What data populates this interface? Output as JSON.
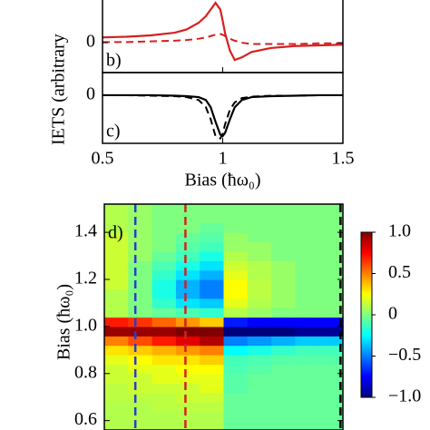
{
  "chart_data": [
    {
      "type": "line",
      "panel_label": "b)",
      "ylabel": "IETS (arbitrary",
      "xlim": [
        0.5,
        1.5
      ],
      "ylim": [
        -0.45,
        0.78
      ],
      "yticks": [
        0
      ],
      "x": [
        0.5,
        0.6,
        0.7,
        0.8,
        0.85,
        0.9,
        0.93,
        0.95,
        0.97,
        0.99,
        1.0,
        1.01,
        1.03,
        1.05,
        1.08,
        1.12,
        1.2,
        1.3,
        1.4,
        1.5
      ],
      "series": [
        {
          "color": "#d62020",
          "style": "solid",
          "values": [
            0.08,
            0.09,
            0.11,
            0.15,
            0.2,
            0.3,
            0.4,
            0.5,
            0.6,
            0.5,
            0.33,
            0.14,
            -0.12,
            -0.26,
            -0.22,
            -0.14,
            -0.08,
            -0.05,
            -0.04,
            -0.03
          ]
        },
        {
          "color": "#d62020",
          "style": "dashed",
          "values": [
            0.01,
            0.01,
            0.02,
            0.03,
            0.04,
            0.06,
            0.08,
            0.1,
            0.12,
            0.13,
            0.12,
            0.1,
            0.06,
            0.03,
            0,
            -0.02,
            -0.02,
            -0.02,
            -0.01,
            -0.01
          ]
        }
      ]
    },
    {
      "type": "line",
      "panel_label": "c)",
      "xlabel": "Bias (ħω₀)",
      "xlim": [
        0.5,
        1.5
      ],
      "xticks": [
        0.5,
        1,
        1.5
      ],
      "ylim": [
        -1,
        0.47
      ],
      "yticks": [
        0
      ],
      "x": [
        0.5,
        0.6,
        0.7,
        0.8,
        0.85,
        0.9,
        0.93,
        0.95,
        0.97,
        0.99,
        1.0,
        1.01,
        1.03,
        1.05,
        1.08,
        1.12,
        1.2,
        1.3,
        1.4,
        1.5
      ],
      "series": [
        {
          "color": "#000000",
          "style": "solid",
          "values": [
            0,
            0,
            0,
            -0.01,
            -0.02,
            -0.04,
            -0.1,
            -0.25,
            -0.55,
            -0.82,
            -0.85,
            -0.78,
            -0.5,
            -0.25,
            -0.1,
            -0.04,
            -0.02,
            -0.01,
            0,
            0
          ]
        },
        {
          "color": "#000000",
          "style": "dashed",
          "values": [
            0,
            0,
            -0.01,
            -0.02,
            -0.04,
            -0.1,
            -0.25,
            -0.5,
            -0.85,
            -0.9,
            -0.8,
            -0.6,
            -0.3,
            -0.15,
            -0.06,
            -0.03,
            -0.01,
            -0.01,
            0,
            0
          ]
        }
      ]
    },
    {
      "type": "heatmap",
      "panel_label": "d)",
      "ylabel": "Bias (ħω₀)",
      "xlim": [
        0.5,
        1.5
      ],
      "ylim": [
        0.56,
        1.52
      ],
      "yticks": [
        0.6,
        0.8,
        {
          "value": 1,
          "label": "1.0"
        },
        1.2,
        1.4
      ],
      "x_edges": [
        0.5,
        0.6,
        0.7,
        0.8,
        0.9,
        1.0,
        1.1,
        1.2,
        1.3,
        1.4,
        1.5
      ],
      "y_edges": [
        0.56,
        0.6,
        0.64,
        0.68,
        0.72,
        0.76,
        0.8,
        0.84,
        0.88,
        0.92,
        0.96,
        1.0,
        1.04,
        1.08,
        1.12,
        1.16,
        1.2,
        1.24,
        1.28,
        1.32,
        1.36,
        1.4,
        1.44,
        1.48,
        1.52
      ],
      "z": [
        [
          0.1,
          0.1,
          0.1,
          0.1,
          0.1,
          -0.05,
          -0.05,
          -0.05,
          -0.05,
          -0.05
        ],
        [
          0.1,
          0.1,
          0.1,
          0.1,
          0.1,
          -0.05,
          -0.05,
          -0.05,
          -0.05,
          -0.05
        ],
        [
          0.1,
          0.1,
          0.12,
          0.12,
          0.12,
          -0.05,
          -0.05,
          -0.05,
          -0.05,
          -0.05
        ],
        [
          0.12,
          0.12,
          0.12,
          0.15,
          0.15,
          -0.05,
          -0.05,
          -0.05,
          -0.05,
          -0.05
        ],
        [
          0.12,
          0.15,
          0.15,
          0.15,
          0.2,
          -0.08,
          -0.05,
          -0.05,
          -0.05,
          -0.05
        ],
        [
          0.15,
          0.15,
          0.2,
          0.2,
          0.2,
          -0.08,
          -0.05,
          -0.05,
          -0.05,
          -0.05
        ],
        [
          0.15,
          0.2,
          0.2,
          0.25,
          0.25,
          -0.1,
          -0.08,
          -0.05,
          -0.05,
          -0.05
        ],
        [
          0.2,
          0.25,
          0.3,
          0.3,
          0.35,
          -0.12,
          -0.1,
          -0.08,
          -0.08,
          -0.08
        ],
        [
          0.3,
          0.35,
          0.4,
          0.45,
          0.5,
          -0.25,
          -0.2,
          -0.15,
          -0.12,
          -0.12
        ],
        [
          0.5,
          0.6,
          0.7,
          0.8,
          0.9,
          -0.5,
          -0.45,
          -0.4,
          -0.35,
          -0.35
        ],
        [
          0.95,
          0.95,
          0.95,
          1,
          1,
          -1,
          -1,
          -1,
          -0.95,
          -0.95
        ],
        [
          0.7,
          0.65,
          0.55,
          0.45,
          0.35,
          -0.7,
          -0.75,
          -0.75,
          -0.75,
          -0.75
        ],
        [
          0.1,
          0,
          -0.05,
          -0.1,
          -0.15,
          0.1,
          0.05,
          0,
          0,
          0
        ],
        [
          0.1,
          0,
          -0.15,
          -0.3,
          -0.35,
          0.2,
          0.1,
          0.05,
          0,
          0
        ],
        [
          0.1,
          0,
          -0.2,
          -0.4,
          -0.5,
          0.25,
          0.12,
          0.05,
          0,
          0
        ],
        [
          0.15,
          0,
          -0.2,
          -0.4,
          -0.5,
          0.25,
          0.12,
          0.05,
          0,
          0
        ],
        [
          0.15,
          0,
          -0.15,
          -0.3,
          -0.4,
          0.2,
          0.1,
          0.05,
          0,
          0
        ],
        [
          0.15,
          0,
          -0.1,
          -0.2,
          -0.3,
          0.15,
          0.1,
          0.05,
          0,
          0
        ],
        [
          0.15,
          0.05,
          -0.05,
          -0.12,
          -0.2,
          0.1,
          0.05,
          0,
          0,
          0
        ],
        [
          0.15,
          0.05,
          0,
          -0.08,
          -0.12,
          0.05,
          0.05,
          0,
          0,
          0
        ],
        [
          0.15,
          0.05,
          0,
          -0.05,
          -0.08,
          0.05,
          0,
          0,
          0,
          0
        ],
        [
          0.1,
          0.05,
          0,
          0,
          -0.05,
          0,
          0,
          0,
          0,
          0
        ],
        [
          0.1,
          0.05,
          0,
          0,
          0,
          0,
          0,
          0,
          0,
          0
        ],
        [
          0.1,
          0.05,
          0,
          0,
          0,
          0,
          0,
          0,
          0,
          0
        ]
      ],
      "zlim": [
        -1,
        1
      ],
      "zticks": [
        {
          "value": 1,
          "label": "1.0"
        },
        0.5,
        0,
        {
          "value": -0.5,
          "label": "−0.5"
        },
        {
          "value": -1,
          "label": "−1.0"
        }
      ],
      "colorscale": [
        "#00007f",
        "#0000ff",
        "#007fff",
        "#00ffff",
        "#7fff7f",
        "#ffff00",
        "#ff7f00",
        "#ff0000",
        "#7f0000"
      ],
      "vlines": [
        {
          "x": 0.63,
          "color": "#2b3bd0"
        },
        {
          "x": 0.84,
          "color": "#d62020"
        },
        {
          "x": 1.49,
          "color": "#000000"
        }
      ]
    }
  ]
}
